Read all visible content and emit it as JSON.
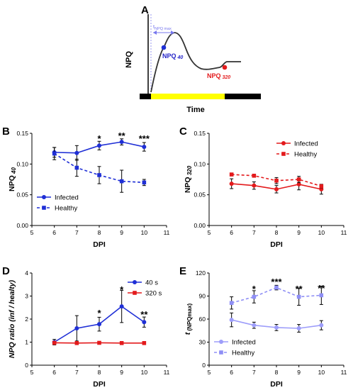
{
  "colors": {
    "infected_blue": "#1f2fd6",
    "healthy_blue": "#1f2fd6",
    "infected_red": "#e31a1c",
    "healthy_red": "#e31a1c",
    "ratio_40": "#1f2fd6",
    "ratio_320": "#e31a1c",
    "infected_light": "#9d9dfa",
    "healthy_light": "#8f8ff5",
    "yellow": "#ffff00",
    "black": "#000000"
  },
  "chart_data": [
    {
      "panel": "A",
      "type": "diagram",
      "ylabel": "NPQ",
      "xlabel": "Time",
      "annotations": [
        "t",
        "NPQ max",
        "NPQ",
        "40",
        "NPQ",
        "320"
      ]
    },
    {
      "panel": "B",
      "type": "line",
      "xlabel": "DPI",
      "ylabel_main": "NPQ",
      "ylabel_sub": "40",
      "xlim": [
        5,
        11
      ],
      "ylim": [
        0,
        0.15
      ],
      "xticks": [
        5,
        6,
        7,
        8,
        9,
        10,
        11
      ],
      "yticks": [
        0.0,
        0.05,
        0.1,
        0.15
      ],
      "ytick_labels": [
        "0.00",
        "0.05",
        "0.10",
        "0.15"
      ],
      "legend": "bottom-left",
      "x": [
        6,
        7,
        8,
        9,
        10
      ],
      "series": [
        {
          "name": "Infected",
          "style": "solid",
          "marker": "circle",
          "values": [
            0.119,
            0.118,
            0.13,
            0.136,
            0.128
          ],
          "err": [
            0.008,
            0.012,
            0.007,
            0.005,
            0.007
          ]
        },
        {
          "name": "Healthy",
          "style": "dashed",
          "marker": "square",
          "values": [
            0.117,
            0.094,
            0.082,
            0.072,
            0.07
          ],
          "err": [
            0.01,
            0.014,
            0.014,
            0.018,
            0.005
          ]
        }
      ],
      "significance": [
        {
          "x": 8,
          "label": "*"
        },
        {
          "x": 9,
          "label": "**"
        },
        {
          "x": 10,
          "label": "***"
        }
      ]
    },
    {
      "panel": "C",
      "type": "line",
      "xlabel": "DPI",
      "ylabel_main": "NPQ",
      "ylabel_sub": "320",
      "xlim": [
        5,
        11
      ],
      "ylim": [
        0,
        0.15
      ],
      "xticks": [
        5,
        6,
        7,
        8,
        9,
        10,
        11
      ],
      "yticks": [
        0.0,
        0.05,
        0.1,
        0.15
      ],
      "ytick_labels": [
        "0.00",
        "0.05",
        "0.10",
        "0.15"
      ],
      "legend": "top-right",
      "x": [
        6,
        7,
        8,
        9,
        10
      ],
      "series": [
        {
          "name": "Infected",
          "style": "solid",
          "marker": "circle",
          "values": [
            0.068,
            0.065,
            0.059,
            0.067,
            0.059
          ],
          "err": [
            0.008,
            0.006,
            0.006,
            0.009,
            0.008
          ]
        },
        {
          "name": "Healthy",
          "style": "dashed",
          "marker": "square",
          "values": [
            0.083,
            0.081,
            0.073,
            0.075,
            0.064
          ],
          "err": [
            0.002,
            0.002,
            0.005,
            0.005,
            0.003
          ]
        }
      ],
      "significance": []
    },
    {
      "panel": "D",
      "type": "line",
      "xlabel": "DPI",
      "ylabel_main": "NPQ ratio (inf / healty)",
      "xlim": [
        5,
        11
      ],
      "ylim": [
        0,
        4
      ],
      "xticks": [
        5,
        6,
        7,
        8,
        9,
        10,
        11
      ],
      "yticks": [
        0,
        1,
        2,
        3,
        4
      ],
      "ytick_labels": [
        "0",
        "1",
        "2",
        "3",
        "4"
      ],
      "legend": "top-right",
      "x": [
        6,
        7,
        8,
        9,
        10
      ],
      "series": [
        {
          "name": "40 s",
          "style": "solid",
          "marker": "circle",
          "values": [
            1.0,
            1.6,
            1.78,
            2.55,
            1.87
          ],
          "err": [
            0.12,
            0.55,
            0.3,
            0.7,
            0.22
          ]
        },
        {
          "name": "320 s",
          "style": "solid",
          "marker": "square",
          "values": [
            0.97,
            0.96,
            0.97,
            0.96,
            0.96
          ],
          "err": [
            0,
            0,
            0,
            0,
            0
          ]
        }
      ],
      "significance": [
        {
          "x": 8,
          "label": "*"
        },
        {
          "x": 9,
          "label": "*"
        },
        {
          "x": 10,
          "label": "**"
        }
      ]
    },
    {
      "panel": "E",
      "type": "line",
      "xlabel": "DPI",
      "ylabel_main": "t",
      "ylabel_sub": "(NPQmax)",
      "xlim": [
        5,
        11
      ],
      "ylim": [
        0,
        120
      ],
      "xticks": [
        5,
        6,
        7,
        8,
        9,
        10,
        11
      ],
      "yticks": [
        0,
        30,
        60,
        90,
        120
      ],
      "ytick_labels": [
        "0",
        "30",
        "60",
        "90",
        "120"
      ],
      "legend": "bottom-left",
      "x": [
        6,
        7,
        8,
        9,
        10
      ],
      "series": [
        {
          "name": "Infected",
          "style": "solid",
          "marker": "circle",
          "values": [
            59,
            52,
            49,
            48,
            52
          ],
          "err": [
            9,
            4,
            4,
            5,
            6
          ]
        },
        {
          "name": "Healthy",
          "style": "dashed",
          "marker": "square",
          "values": [
            81,
            89,
            101,
            89,
            91
          ],
          "err": [
            8,
            8,
            3,
            11,
            12
          ]
        }
      ],
      "significance": [
        {
          "x": 7,
          "label": "*"
        },
        {
          "x": 8,
          "label": "***"
        },
        {
          "x": 9,
          "label": "**"
        },
        {
          "x": 10,
          "label": "**"
        }
      ]
    }
  ]
}
